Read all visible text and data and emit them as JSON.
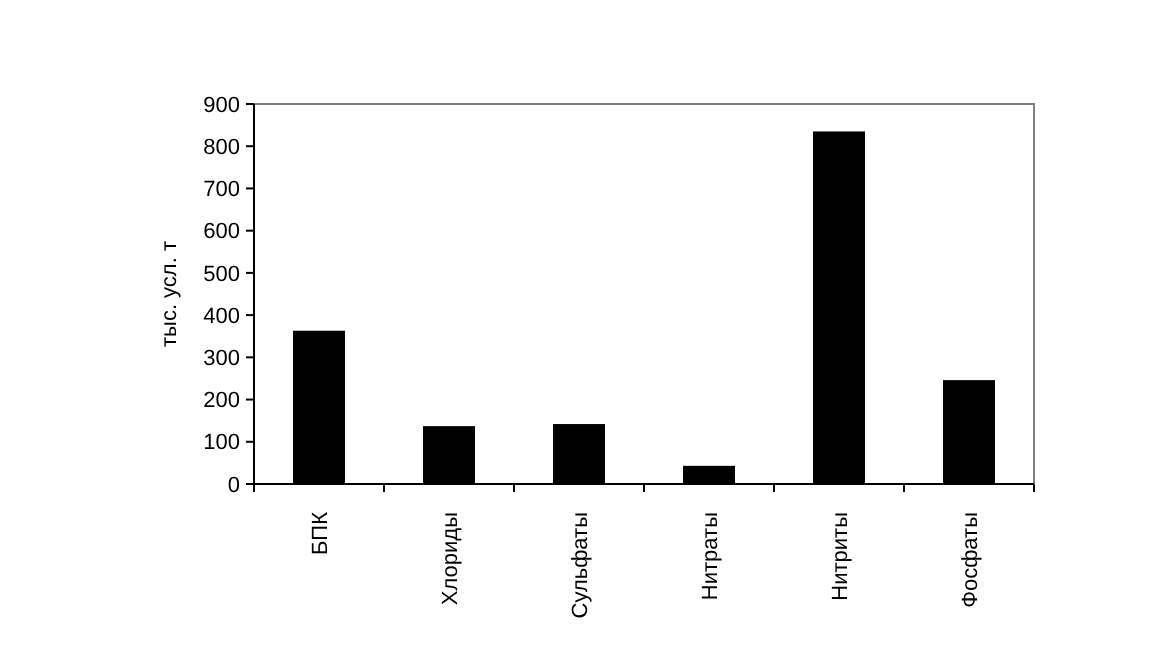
{
  "chart_data": {
    "type": "bar",
    "ylabel": "тыс. усл. т",
    "categories": [
      "БПК",
      "Хлориды",
      "Сульфаты",
      "Нитраты",
      "Нитриты",
      "Фосфаты"
    ],
    "values": [
      363,
      137,
      142,
      43,
      835,
      246
    ],
    "color": "#000000",
    "ylim": [
      0,
      900
    ],
    "yticks": [
      0,
      100,
      200,
      300,
      400,
      500,
      600,
      700,
      800,
      900
    ],
    "grid": false
  }
}
